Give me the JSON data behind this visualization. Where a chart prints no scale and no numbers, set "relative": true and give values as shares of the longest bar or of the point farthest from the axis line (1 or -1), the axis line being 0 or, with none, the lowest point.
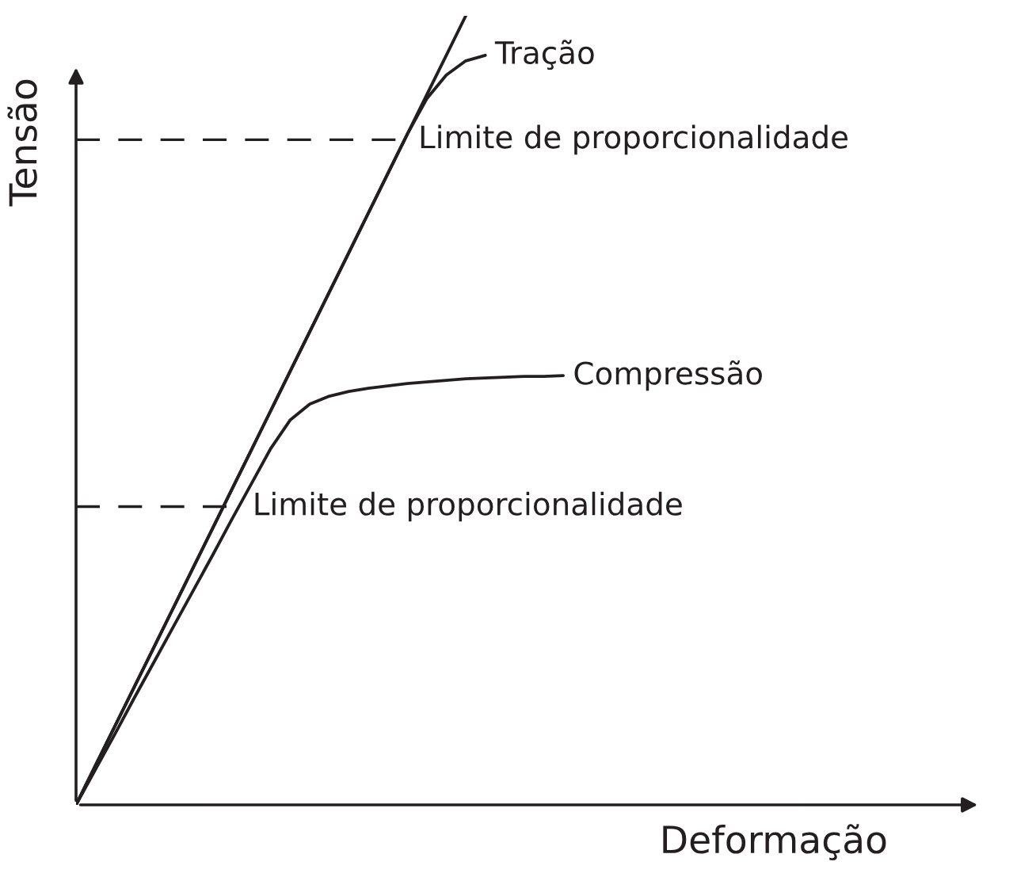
{
  "chart_data": {
    "type": "line",
    "relative": true,
    "xlabel": "Deformação",
    "ylabel": "Tensão",
    "categories": [
      null,
      null,
      null,
      null,
      null,
      null,
      null,
      null,
      null,
      null,
      null,
      null,
      null,
      null,
      null,
      null,
      null,
      null,
      null,
      null,
      null,
      null,
      null,
      null,
      null,
      null
    ],
    "series": [
      {
        "color": "#231f20",
        "values": [
          0,
          0.05,
          0.1,
          0.15,
          0.2,
          0.25,
          0.3,
          0.35,
          0.4,
          0.45,
          0.5,
          0.55,
          0.6,
          0.65,
          0.7,
          0.75,
          0.8,
          0.85,
          0.9,
          0.95,
          1.0,
          null,
          null,
          null,
          null,
          null
        ]
      },
      {
        "name": "Tração",
        "color": "#231f20",
        "values": [
          0,
          0.05,
          0.1,
          0.15,
          0.2,
          0.25,
          0.3,
          0.35,
          0.4,
          0.45,
          0.5,
          0.55,
          0.6,
          0.65,
          0.7,
          0.75,
          0.8,
          0.85,
          0.895,
          0.925,
          0.943,
          0.95,
          null,
          null,
          null,
          null
        ]
      },
      {
        "name": "Compressão",
        "color": "#231f20",
        "values": [
          0,
          0.045,
          0.09,
          0.136,
          0.181,
          0.226,
          0.271,
          0.316,
          0.362,
          0.407,
          0.452,
          0.488,
          0.508,
          0.518,
          0.524,
          0.528,
          0.531,
          0.534,
          0.536,
          0.538,
          0.54,
          0.541,
          0.542,
          0.543,
          0.543,
          0.544
        ]
      }
    ],
    "ref_lines": [
      {
        "axis": "y",
        "value": 0.843,
        "label": "Limite de proporcionalidade",
        "line_style": "dashed",
        "color": "#231f20"
      },
      {
        "axis": "y",
        "value": 0.378,
        "label": "Limite de proporcionalidade",
        "line_style": "dashed",
        "color": "#231f20"
      }
    ],
    "marker": "none",
    "line_style": "solid"
  }
}
